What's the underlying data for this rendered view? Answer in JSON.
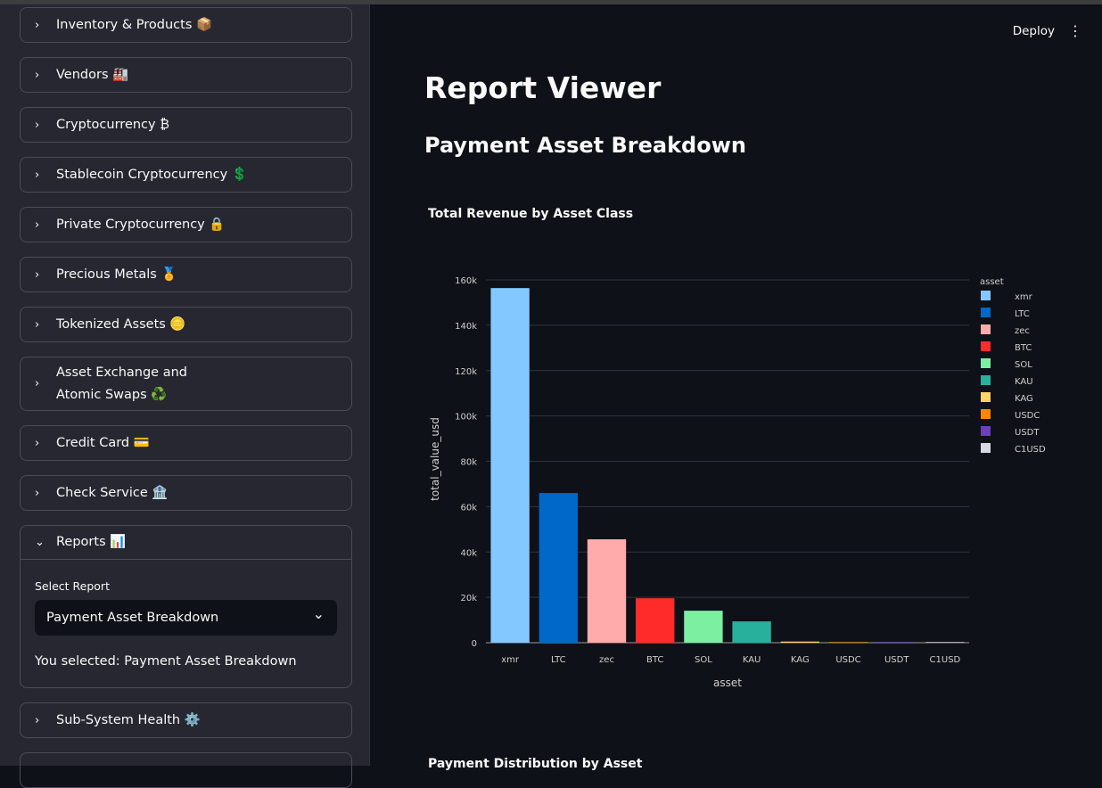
{
  "sidebar": {
    "items": [
      {
        "label": "Inventory & Products 📦"
      },
      {
        "label": "Vendors 🏭"
      },
      {
        "label": "Cryptocurrency ₿"
      },
      {
        "label": "Stablecoin Cryptocurrency 💲"
      },
      {
        "label": "Private Cryptocurrency 🔒"
      },
      {
        "label": "Precious Metals 🏅"
      },
      {
        "label": "Tokenized Assets 🪙"
      },
      {
        "label": "Asset Exchange and Atomic Swaps ♻️"
      },
      {
        "label": "Credit Card 💳"
      },
      {
        "label": "Check Service 🏦"
      },
      {
        "label": "Reports 📊"
      },
      {
        "label": "Sub-System Health ⚙️"
      }
    ],
    "reports": {
      "select_label": "Select Report",
      "selected": "Payment Asset Breakdown",
      "selected_text": "You selected: Payment Asset Breakdown"
    }
  },
  "header": {
    "deploy": "Deploy",
    "menu_icon": "vertical-ellipsis"
  },
  "main": {
    "title": "Report Viewer",
    "subtitle": "Payment Asset Breakdown",
    "next_chart_title": "Payment Distribution by Asset"
  },
  "chart_data": {
    "type": "bar",
    "title": "Total Revenue by Asset Class",
    "xlabel": "asset",
    "ylabel": "total_value_usd",
    "ylim": [
      0,
      160000
    ],
    "yticks": [
      "0",
      "20k",
      "40k",
      "60k",
      "80k",
      "100k",
      "120k",
      "140k",
      "160k"
    ],
    "categories": [
      "xmr",
      "LTC",
      "zec",
      "BTC",
      "SOL",
      "KAU",
      "KAG",
      "USDC",
      "USDT",
      "C1USD"
    ],
    "values": [
      156400,
      66000,
      45600,
      19600,
      14100,
      9400,
      500,
      100,
      100,
      50
    ],
    "colors": [
      "#83c9ff",
      "#0068c9",
      "#ffabab",
      "#ff2b2b",
      "#7defa1",
      "#29b09d",
      "#ffd16a",
      "#ff8700",
      "#6d3fc0",
      "#d5dae5"
    ],
    "legend": {
      "title": "asset",
      "placement": "right"
    },
    "grid": true
  }
}
